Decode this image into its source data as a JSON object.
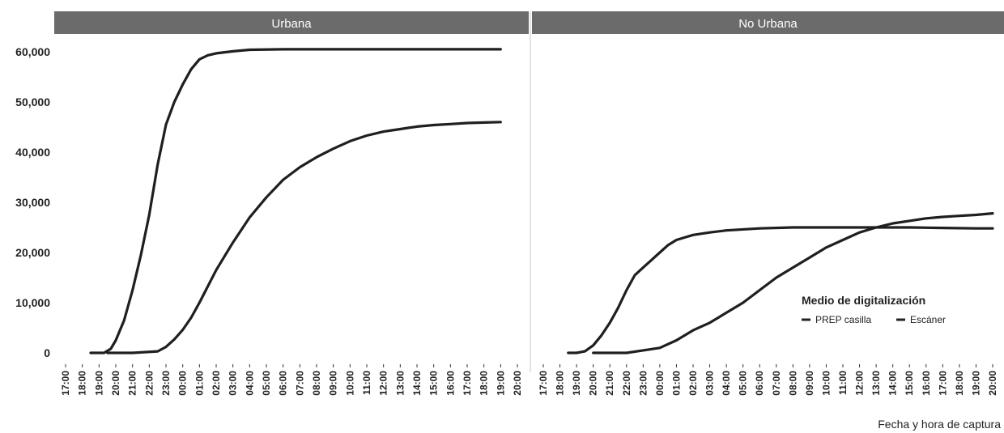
{
  "chart_data": {
    "type": "line",
    "xlabel": "Fecha y hora de captura",
    "ylabel": "",
    "ylim": [
      0,
      62000
    ],
    "y_ticks": [
      "0",
      "10,000",
      "20,000",
      "30,000",
      "40,000",
      "50,000",
      "60,000"
    ],
    "y_tick_values": [
      0,
      10000,
      20000,
      30000,
      40000,
      50000,
      60000
    ],
    "x_range": [
      0,
      27
    ],
    "x_ticks": [
      "17:00",
      "18:00",
      "19:00",
      "20:00",
      "21:00",
      "22:00",
      "23:00",
      "00:00",
      "01:00",
      "02:00",
      "03:00",
      "04:00",
      "05:00",
      "06:00",
      "07:00",
      "08:00",
      "09:00",
      "10:00",
      "11:00",
      "12:00",
      "13:00",
      "14:00",
      "15:00",
      "16:00",
      "17:00",
      "18:00",
      "19:00",
      "20:00"
    ],
    "x_unit": "hours after 17:00",
    "grid": false,
    "legend": {
      "title": "Medio de digitalización",
      "placement": "inside-bottom-right of second panel",
      "entries": [
        "PREP casilla",
        "Escáner"
      ]
    },
    "panels": [
      {
        "title": "Urbana",
        "series": [
          {
            "name": "PREP casilla",
            "x": [
              1.5,
              2.3,
              2.7,
              3.0,
              3.5,
              4.0,
              4.5,
              5.0,
              5.5,
              6.0,
              6.5,
              7.0,
              7.5,
              8.0,
              8.5,
              9.0,
              10.0,
              11.0,
              13.0,
              16.0,
              20.0,
              26.0
            ],
            "y": [
              0,
              0,
              800,
              2500,
              6500,
              12500,
              19500,
              27500,
              37500,
              45500,
              50000,
              53500,
              56500,
              58500,
              59300,
              59700,
              60100,
              60400,
              60500,
              60500,
              60500,
              60500
            ]
          },
          {
            "name": "Escáner",
            "x": [
              2.5,
              4.0,
              5.5,
              6.0,
              6.5,
              7.0,
              7.5,
              8.0,
              9.0,
              10.0,
              11.0,
              12.0,
              13.0,
              14.0,
              15.0,
              16.0,
              17.0,
              18.0,
              19.0,
              20.0,
              21.0,
              22.0,
              23.0,
              24.0,
              25.0,
              26.0
            ],
            "y": [
              0,
              0,
              300,
              1200,
              2700,
              4600,
              7000,
              10000,
              16500,
              22000,
              27000,
              31000,
              34500,
              37000,
              39000,
              40700,
              42200,
              43300,
              44100,
              44600,
              45100,
              45400,
              45600,
              45800,
              45900,
              46000
            ]
          }
        ]
      },
      {
        "title": "No Urbana",
        "series": [
          {
            "name": "PREP casilla",
            "x": [
              1.5,
              2.0,
              2.5,
              3.0,
              3.5,
              4.0,
              4.5,
              5.0,
              5.5,
              6.0,
              6.5,
              7.0,
              7.5,
              8.0,
              8.5,
              9.0,
              10.0,
              11.0,
              13.0,
              15.0,
              17.0,
              20.0,
              22.0,
              24.0,
              26.0,
              27.0
            ],
            "y": [
              0,
              0,
              300,
              1500,
              3500,
              6000,
              9000,
              12500,
              15500,
              17000,
              18500,
              20000,
              21500,
              22500,
              23000,
              23500,
              24000,
              24400,
              24800,
              25000,
              25000,
              25000,
              25000,
              24900,
              24800,
              24800
            ]
          },
          {
            "name": "Escáner",
            "x": [
              3.0,
              5.0,
              6.0,
              7.0,
              8.0,
              9.0,
              10.0,
              11.0,
              12.0,
              13.0,
              14.0,
              15.0,
              16.0,
              17.0,
              18.0,
              19.0,
              20.0,
              21.0,
              22.0,
              23.0,
              24.0,
              25.0,
              26.0,
              27.0
            ],
            "y": [
              0,
              0,
              500,
              1000,
              2500,
              4500,
              6000,
              8000,
              10000,
              12500,
              15000,
              17000,
              19000,
              21000,
              22500,
              24000,
              25000,
              25800,
              26300,
              26800,
              27100,
              27300,
              27500,
              27800
            ]
          }
        ]
      }
    ]
  }
}
